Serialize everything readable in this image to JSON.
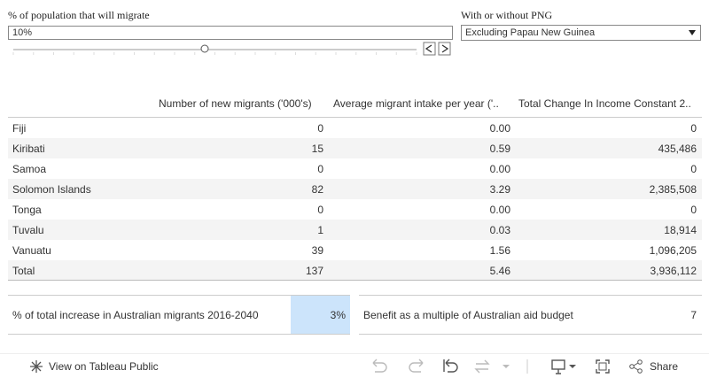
{
  "controls": {
    "slider": {
      "label": "% of population that will migrate",
      "value": "10%"
    },
    "dropdown": {
      "label": "With or without PNG",
      "value": "Excluding Papau New Guinea"
    }
  },
  "table": {
    "headers": [
      "Number of new migrants ('000's)",
      "Average migrant intake per year ('..",
      "Total Change In Income Constant 2.."
    ],
    "rows": [
      [
        "Fiji",
        "0",
        "0.00",
        "0"
      ],
      [
        "Kiribati",
        "15",
        "0.59",
        "435,486"
      ],
      [
        "Samoa",
        "0",
        "0.00",
        "0"
      ],
      [
        "Solomon Islands",
        "82",
        "3.29",
        "2,385,508"
      ],
      [
        "Tonga",
        "0",
        "0.00",
        "0"
      ],
      [
        "Tuvalu",
        "1",
        "0.03",
        "18,914"
      ],
      [
        "Vanuatu",
        "39",
        "1.56",
        "1,096,205"
      ],
      [
        "Total",
        "137",
        "5.46",
        "3,936,112"
      ]
    ]
  },
  "summary": [
    {
      "label": "% of total increase in Australian migrants 2016-2040",
      "value": "3%"
    },
    {
      "label": "Benefit as a multiple of Australian aid budget",
      "value": "7"
    }
  ],
  "footer": {
    "view_link": "View on Tableau Public",
    "share": "Share"
  }
}
